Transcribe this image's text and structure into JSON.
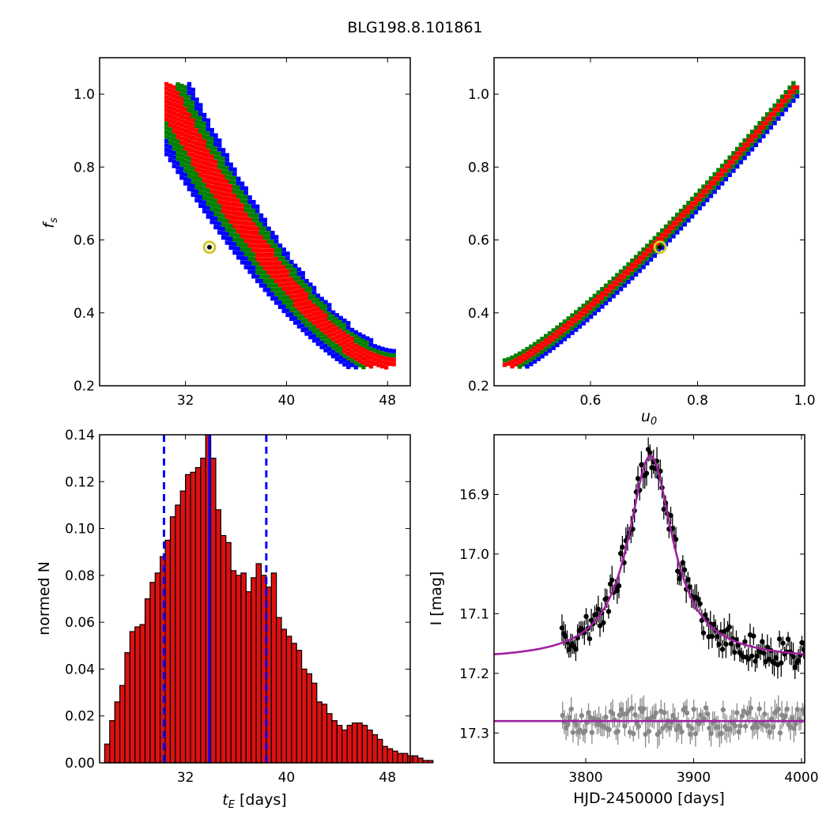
{
  "title": "BLG198.8.101861",
  "chart_data": [
    {
      "panel": "top-left",
      "type": "heatmap",
      "x": {
        "ticks": [
          32,
          40,
          48
        ],
        "lim": [
          25.2,
          49.8
        ]
      },
      "y": {
        "label": "f_s",
        "ticks": [
          "0.2",
          "0.4",
          "0.6",
          "0.8",
          "1.0"
        ],
        "tickvals": [
          0.2,
          0.4,
          0.6,
          0.8,
          1.0
        ],
        "lim": [
          0.2,
          1.1
        ]
      },
      "description_regions": "blue (outer), green (middle), red (inner) confidence regions along curved band",
      "best_fit": {
        "tE": 33.9,
        "fs": 0.58
      },
      "band_tE_min": 30.5,
      "band_tE_max": 48.5,
      "colors": {
        "outer": "#0000ff",
        "middle": "#008000",
        "inner": "#ff0000",
        "marker": "#d4c830"
      }
    },
    {
      "panel": "top-right",
      "type": "heatmap",
      "x": {
        "label": "u_0",
        "ticks": [
          "0.6",
          "0.8",
          "1.0"
        ],
        "tickvals": [
          0.6,
          0.8,
          1.0
        ],
        "lim": [
          0.42,
          1.0
        ]
      },
      "y": {
        "ticks": [
          "0.2",
          "0.4",
          "0.6",
          "0.8",
          "1.0"
        ],
        "tickvals": [
          0.2,
          0.4,
          0.6,
          0.8,
          1.0
        ],
        "lim": [
          0.2,
          1.1
        ]
      },
      "best_fit": {
        "u0": 0.73,
        "fs": 0.58
      },
      "band_u0_min": 0.44,
      "band_u0_max": 0.99
    },
    {
      "panel": "bottom-left",
      "type": "bar",
      "x": {
        "label_main": "t",
        "label_sub": "E",
        "label_unit": " [days]",
        "ticks": [
          32,
          40,
          48
        ],
        "lim": [
          25.2,
          49.8
        ]
      },
      "y": {
        "label": "normed N",
        "ticks": [
          "0.00",
          "0.02",
          "0.04",
          "0.06",
          "0.08",
          "0.10",
          "0.12",
          "0.14"
        ],
        "tickvals": [
          0,
          0.02,
          0.04,
          0.06,
          0.08,
          0.1,
          0.12,
          0.14
        ],
        "lim": [
          0,
          0.14
        ]
      },
      "bin_start": 25.6,
      "bin_width": 0.4,
      "values": [
        0.008,
        0.018,
        0.026,
        0.033,
        0.047,
        0.056,
        0.058,
        0.059,
        0.07,
        0.077,
        0.081,
        0.088,
        0.095,
        0.105,
        0.11,
        0.116,
        0.123,
        0.124,
        0.126,
        0.13,
        0.14,
        0.13,
        0.108,
        0.097,
        0.094,
        0.082,
        0.08,
        0.081,
        0.073,
        0.079,
        0.085,
        0.08,
        0.075,
        0.081,
        0.062,
        0.057,
        0.054,
        0.051,
        0.048,
        0.04,
        0.038,
        0.034,
        0.026,
        0.025,
        0.021,
        0.018,
        0.016,
        0.014,
        0.016,
        0.017,
        0.017,
        0.016,
        0.014,
        0.012,
        0.01,
        0.007,
        0.006,
        0.005,
        0.004,
        0.004,
        0.003,
        0.003,
        0.002,
        0.001,
        0.001
      ],
      "median_line": 33.9,
      "dashed_lines": [
        30.3,
        38.4
      ],
      "colors": {
        "bar": "#dd1111",
        "edge": "#000000",
        "lines": "#0000ff"
      }
    },
    {
      "panel": "bottom-right",
      "type": "scatter",
      "x": {
        "label": "HJD-2450000 [days]",
        "ticks": [
          3800,
          3900,
          4000
        ],
        "lim": [
          3715,
          4003
        ]
      },
      "y": {
        "label": "I [mag]",
        "ticks": [
          "16.9",
          "17.0",
          "17.1",
          "17.2",
          "17.3"
        ],
        "tickvals": [
          16.9,
          17.0,
          17.1,
          17.2,
          17.3
        ],
        "lim": [
          17.35,
          16.8
        ],
        "inverted": true
      },
      "model": {
        "t0": 3860,
        "peak": 16.835,
        "base": 17.178,
        "width": 25
      },
      "residual_line": 17.28,
      "point_range": [
        3778,
        4003
      ],
      "colors": {
        "data": "#000000",
        "residual": "#888888",
        "model": "#a020a0"
      }
    }
  ]
}
